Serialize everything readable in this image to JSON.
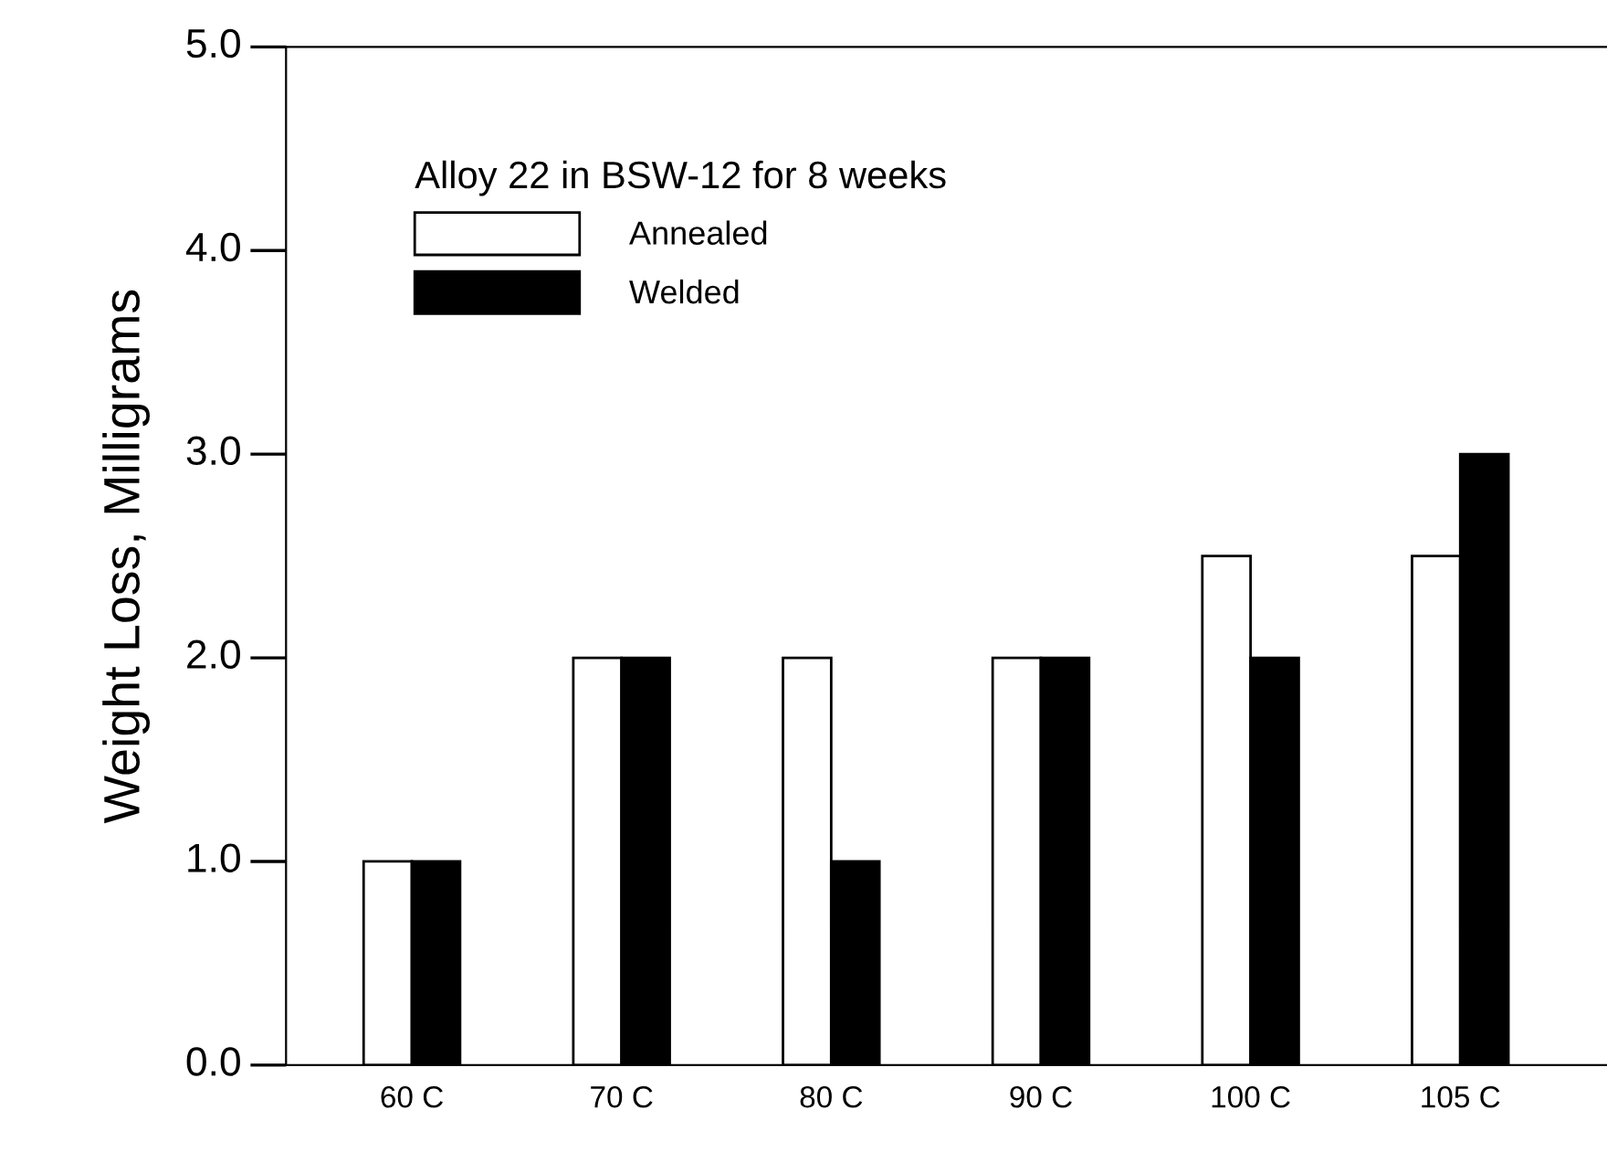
{
  "chart_data": {
    "type": "bar",
    "ylabel": "Weight Loss, Milligrams",
    "legend_title": "Alloy 22 in BSW-12 for 8 weeks",
    "categories": [
      "60 C",
      "70 C",
      "80 C",
      "90 C",
      "100 C",
      "105 C"
    ],
    "series": [
      {
        "name": "Annealed",
        "color": "#ffffff",
        "values": [
          1.0,
          2.0,
          2.0,
          2.0,
          2.5,
          2.5
        ]
      },
      {
        "name": "Welded",
        "color": "#000000",
        "values": [
          1.0,
          2.0,
          1.0,
          2.0,
          2.0,
          3.0
        ]
      }
    ],
    "ylim": [
      0,
      5.0
    ],
    "yticks": [
      {
        "value": 0,
        "label": "0.0"
      },
      {
        "value": 1,
        "label": "1.0"
      },
      {
        "value": 2,
        "label": "2.0"
      },
      {
        "value": 3,
        "label": "3.0"
      },
      {
        "value": 4,
        "label": "4.0"
      },
      {
        "value": 5,
        "label": "5.0"
      }
    ],
    "grid": false,
    "legend": "top left"
  }
}
